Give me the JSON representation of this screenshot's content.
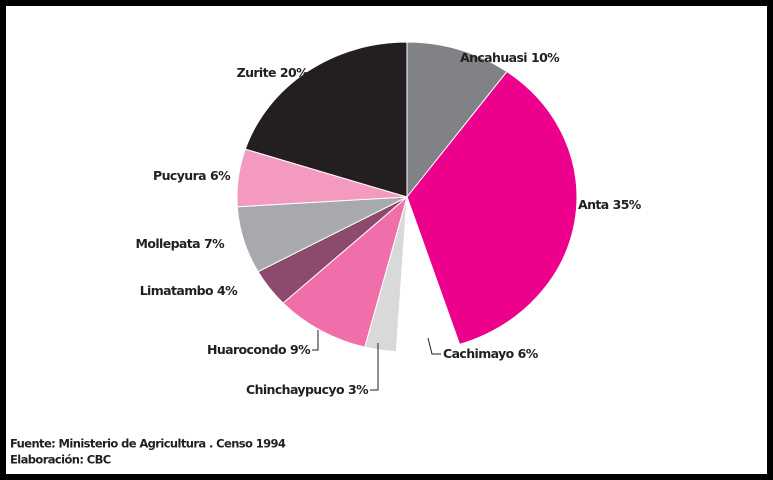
{
  "chart_data": {
    "type": "pie",
    "categories": [
      "Ancahuasi",
      "Anta",
      "Cachimayo",
      "Chinchaypucyo",
      "Huarocondo",
      "Limatambo",
      "Mollepata",
      "Pucyura",
      "Zurite"
    ],
    "values": [
      10,
      35,
      6,
      3,
      9,
      4,
      7,
      6,
      20
    ],
    "value_labels": [
      "10%",
      "35%",
      "6%",
      "3%",
      "9%",
      "4%",
      "7%",
      "6%",
      "20%"
    ],
    "colors": [
      "#808285",
      "#ec008c",
      "#ffffff",
      "#d9d9da",
      "#f06eaa",
      "#8c4a6e",
      "#a7a9ac",
      "#f49ac1",
      "#231f20"
    ],
    "notes": [
      "Fuente: Ministerio de Agricultura . Censo 1994",
      "Elaboración: CBC"
    ]
  }
}
